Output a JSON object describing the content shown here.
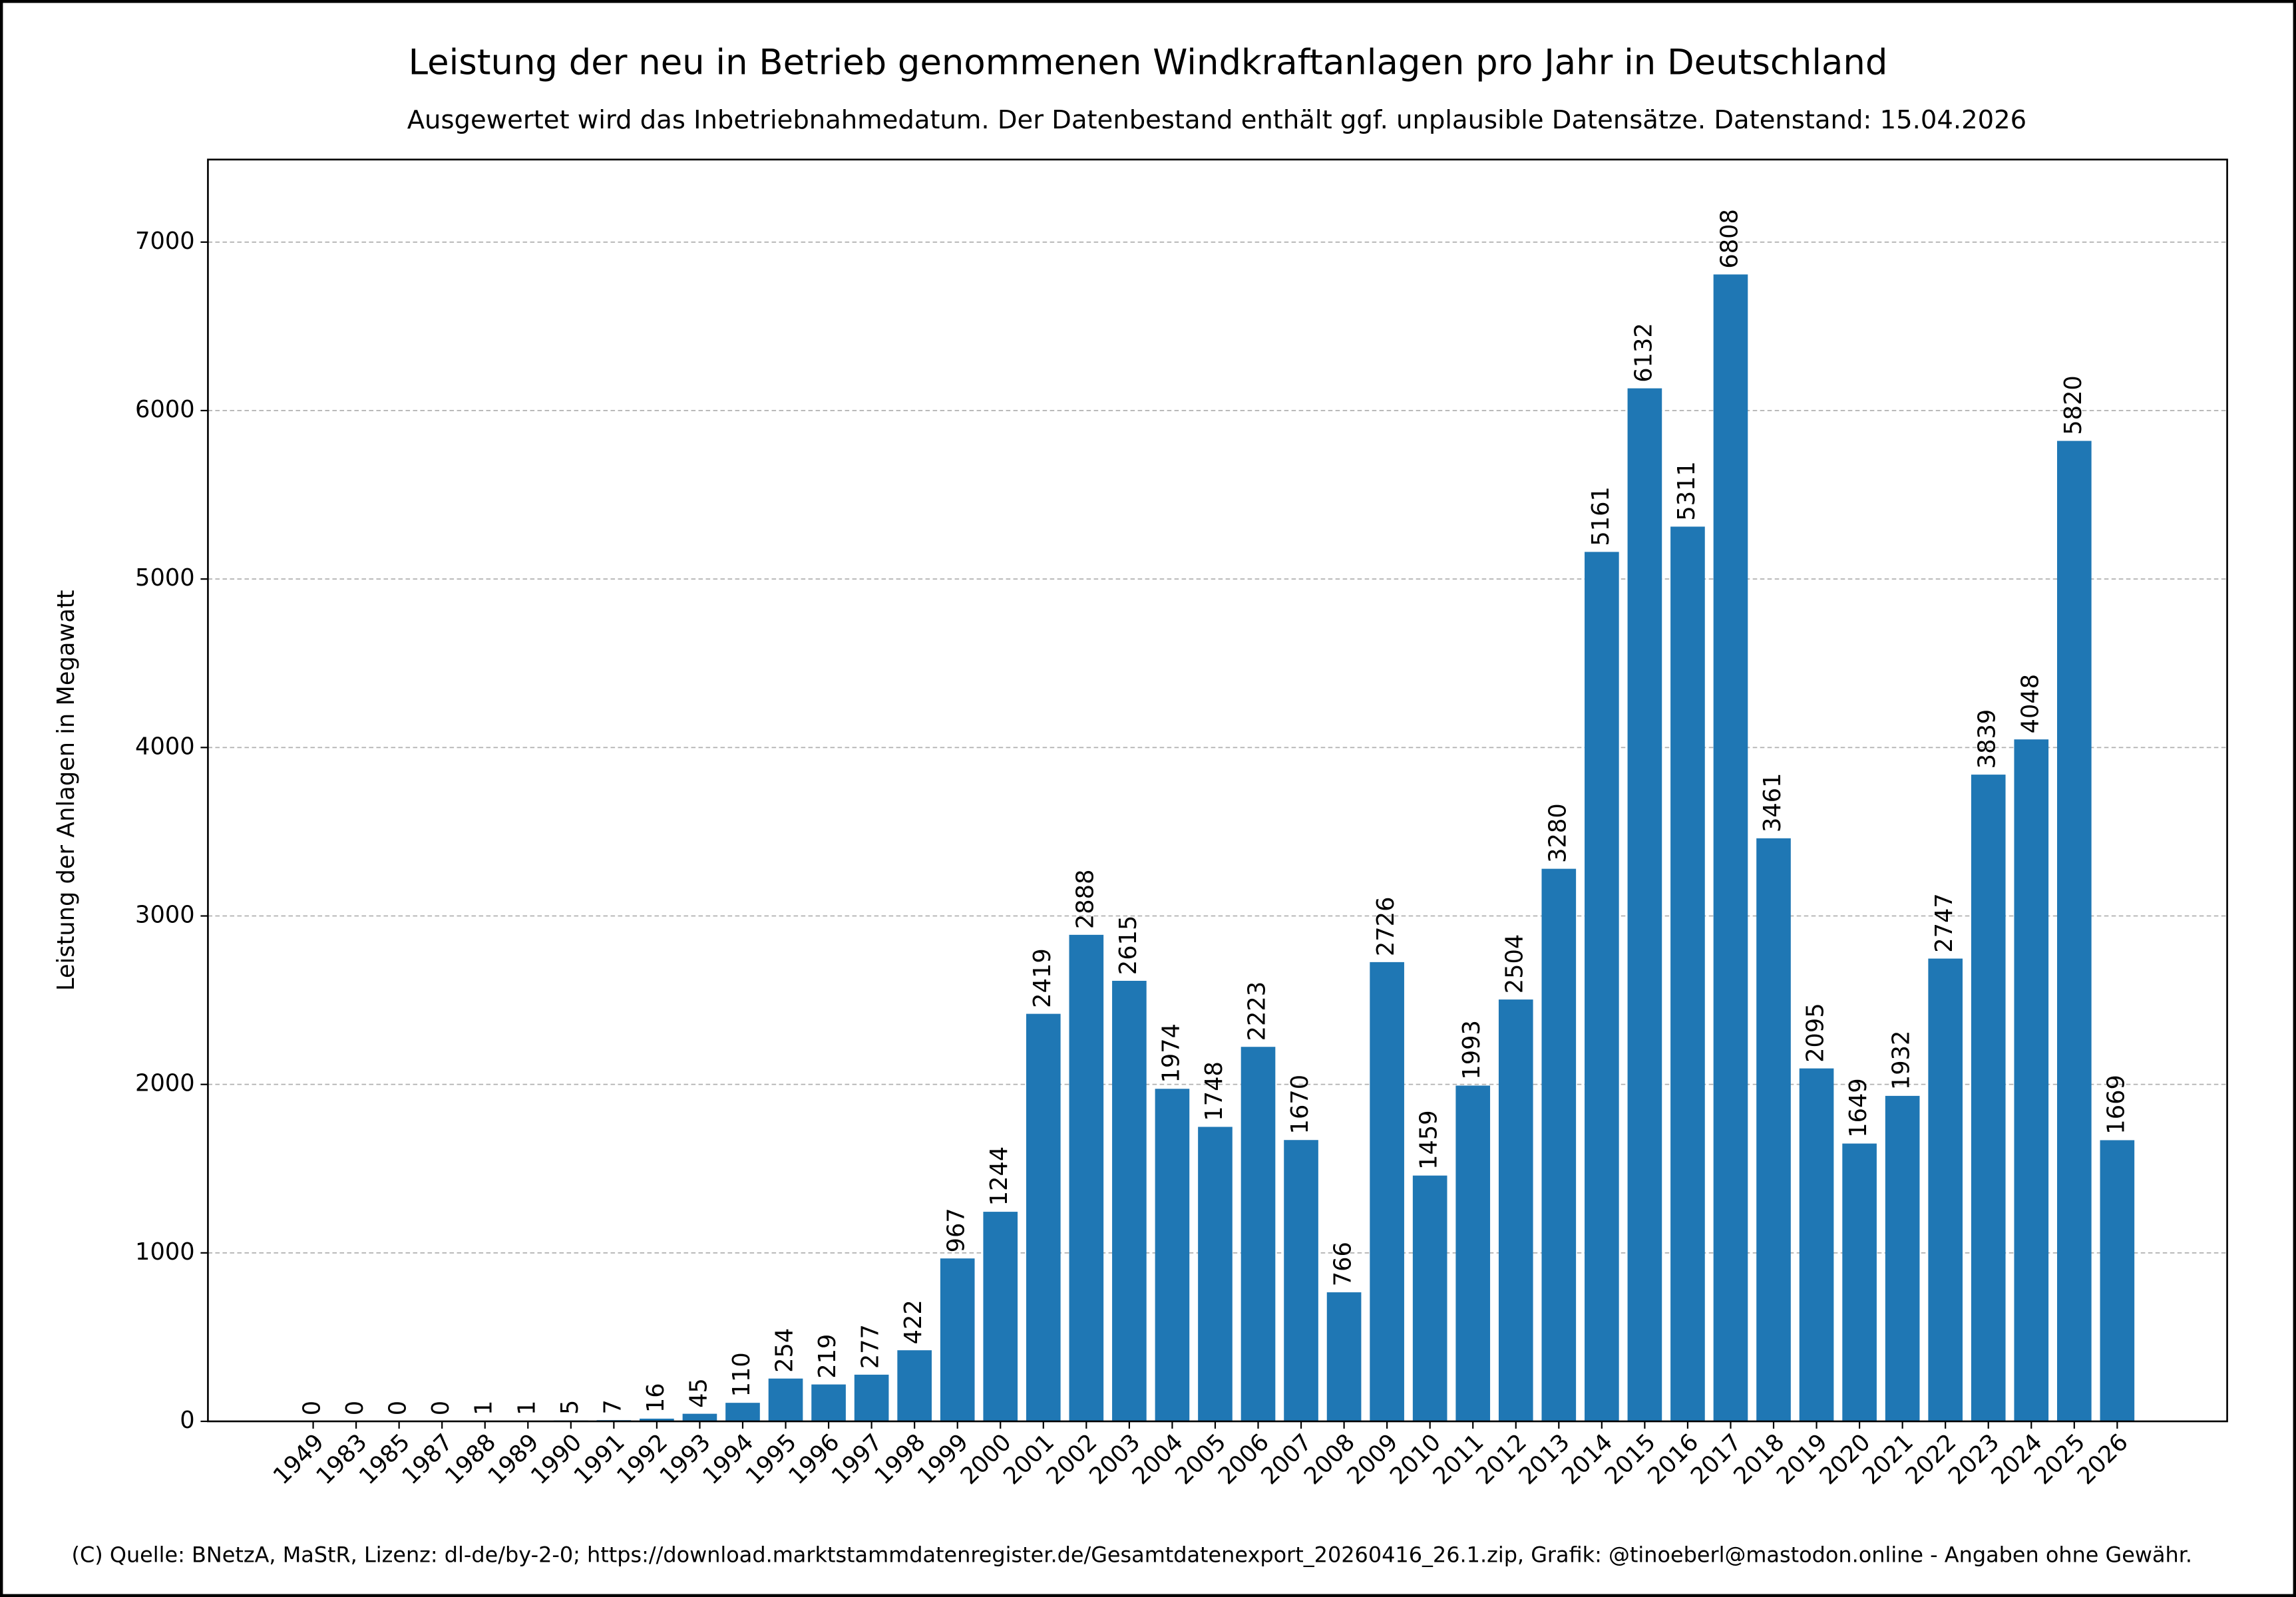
{
  "chart_data": {
    "type": "bar",
    "title": "Leistung der neu in Betrieb genommenen Windkraftanlagen pro Jahr in Deutschland",
    "subtitle": "Ausgewertet wird das Inbetriebnahmedatum. Der Datenbestand enthält ggf. unplausible Datensätze. Datenstand: 15.04.2026",
    "y_label": "Leistung der Anlagen in Megawatt",
    "footer": "(C) Quelle: BNetzA, MaStR, Lizenz: dl-de/by-2-0; https://download.marktstammdatenregister.de/Gesamtdatenexport_20260416_26.1.zip, Grafik: @tinoeberl@mastodon.online - Angaben ohne Gewähr.",
    "categories": [
      "1949",
      "1983",
      "1985",
      "1987",
      "1988",
      "1989",
      "1990",
      "1991",
      "1992",
      "1993",
      "1994",
      "1995",
      "1996",
      "1997",
      "1998",
      "1999",
      "2000",
      "2001",
      "2002",
      "2003",
      "2004",
      "2005",
      "2006",
      "2007",
      "2008",
      "2009",
      "2010",
      "2011",
      "2012",
      "2013",
      "2014",
      "2015",
      "2016",
      "2017",
      "2018",
      "2019",
      "2020",
      "2021",
      "2022",
      "2023",
      "2024",
      "2025",
      "2026"
    ],
    "values": [
      0,
      0,
      0,
      0,
      1,
      1,
      5,
      7,
      16,
      45,
      110,
      254,
      219,
      277,
      422,
      967,
      1244,
      2419,
      2888,
      2615,
      1974,
      1748,
      2223,
      1670,
      766,
      2726,
      1459,
      1993,
      2504,
      3280,
      5161,
      6132,
      5311,
      6808,
      3461,
      2095,
      1649,
      1932,
      2747,
      3839,
      4048,
      5820,
      1669
    ],
    "color": "#1f77b4",
    "ylim": [
      0,
      7490
    ],
    "yticks": [
      0,
      1000,
      2000,
      3000,
      4000,
      5000,
      6000,
      7000
    ],
    "grid": true
  }
}
